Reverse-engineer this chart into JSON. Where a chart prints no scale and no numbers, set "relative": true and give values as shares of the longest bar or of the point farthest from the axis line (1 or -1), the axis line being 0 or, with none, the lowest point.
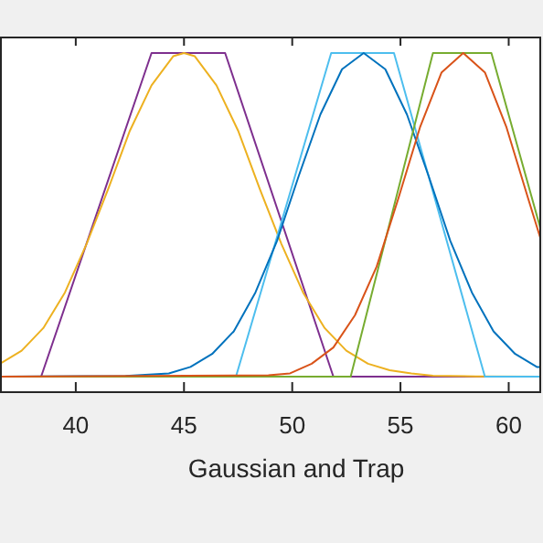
{
  "chart_data": {
    "type": "line",
    "xlabel": "Gaussian and Trap",
    "relative": true,
    "xlim": [
      36.5,
      61.5
    ],
    "xticks": [
      40,
      45,
      50,
      55,
      60
    ],
    "grid": false,
    "line_style": "solid",
    "series": [
      {
        "color": "#7e2f8e",
        "x": [
          36.5,
          38.4,
          43.5,
          46.9,
          51.9,
          61.5
        ],
        "values": [
          0,
          0,
          1,
          1,
          0,
          0
        ]
      },
      {
        "color": "#edb120",
        "x": [
          36.5,
          37.5,
          38.5,
          39.5,
          40.5,
          41.5,
          42.5,
          43.5,
          44.5,
          45,
          45.5,
          46.5,
          47.5,
          48.5,
          49.5,
          50.5,
          51.5,
          52.5,
          53.5,
          54.5,
          55.5,
          56.5,
          58.5,
          61.5
        ],
        "values": [
          0.04,
          0.08,
          0.15,
          0.26,
          0.41,
          0.58,
          0.76,
          0.9,
          0.99,
          1,
          0.99,
          0.9,
          0.76,
          0.58,
          0.41,
          0.26,
          0.15,
          0.08,
          0.04,
          0.02,
          0.01,
          0.003,
          0.001,
          0
        ]
      },
      {
        "color": "#4dbeee",
        "x": [
          36.5,
          47.4,
          51.8,
          54.7,
          58.9,
          61.5
        ],
        "values": [
          0,
          0,
          1,
          1,
          0,
          0
        ]
      },
      {
        "color": "#0072bd",
        "x": [
          36.5,
          42.3,
          44.3,
          45.3,
          46.3,
          47.3,
          48.3,
          49.3,
          50.3,
          51.3,
          52.3,
          53.3,
          54.3,
          55.3,
          56.3,
          57.3,
          58.3,
          59.3,
          60.3,
          61.3,
          61.5
        ],
        "values": [
          0,
          0.002,
          0.01,
          0.03,
          0.07,
          0.14,
          0.26,
          0.42,
          0.62,
          0.81,
          0.95,
          1,
          0.95,
          0.81,
          0.62,
          0.42,
          0.26,
          0.14,
          0.07,
          0.03,
          0.03
        ]
      },
      {
        "color": "#77ac30",
        "x": [
          36.5,
          52.7,
          56.5,
          59.2,
          61.5
        ],
        "values": [
          0,
          0,
          1,
          1,
          0.45
        ]
      },
      {
        "color": "#d95319",
        "x": [
          36.5,
          48.9,
          49.9,
          50.9,
          51.9,
          52.9,
          53.9,
          54.9,
          55.9,
          56.9,
          57.9,
          58.9,
          59.9,
          60.9,
          61.5
        ],
        "values": [
          0,
          0.004,
          0.01,
          0.04,
          0.09,
          0.19,
          0.34,
          0.55,
          0.77,
          0.94,
          1,
          0.94,
          0.77,
          0.55,
          0.42
        ]
      }
    ]
  }
}
